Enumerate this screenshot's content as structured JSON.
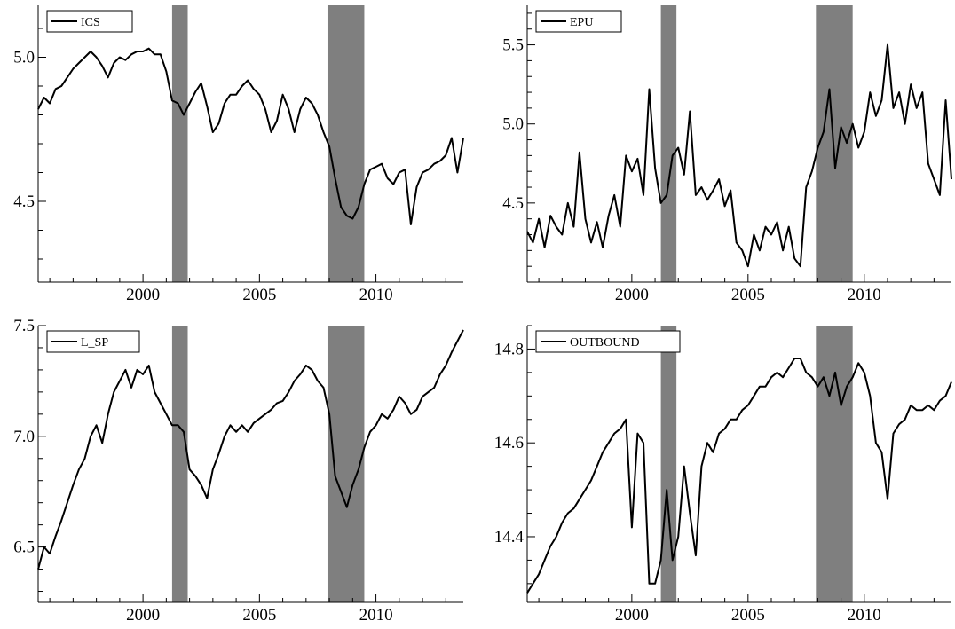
{
  "chart_data": [
    {
      "type": "line",
      "title": "",
      "legend": "ICS",
      "legend_position": "top-left",
      "xlabel": "",
      "ylabel": "",
      "xlim": [
        1995.5,
        2013.75
      ],
      "ylim": [
        4.22,
        5.18
      ],
      "xticks": [
        2000,
        2005,
        2010
      ],
      "xtick_labels": [
        "2000",
        "2005",
        "2010"
      ],
      "yticks": [
        4.5,
        5.0
      ],
      "ytick_labels": [
        "4.5",
        "5.0"
      ],
      "grid": false,
      "series": [
        {
          "name": "ICS",
          "color": "#000000",
          "x": [
            1995.5,
            1995.75,
            1996.0,
            1996.25,
            1996.5,
            1996.75,
            1997.0,
            1997.25,
            1997.5,
            1997.75,
            1998.0,
            1998.25,
            1998.5,
            1998.75,
            1999.0,
            1999.25,
            1999.5,
            1999.75,
            2000.0,
            2000.25,
            2000.5,
            2000.75,
            2001.0,
            2001.25,
            2001.5,
            2001.75,
            2002.0,
            2002.25,
            2002.5,
            2002.75,
            2003.0,
            2003.25,
            2003.5,
            2003.75,
            2004.0,
            2004.25,
            2004.5,
            2004.75,
            2005.0,
            2005.25,
            2005.5,
            2005.75,
            2006.0,
            2006.25,
            2006.5,
            2006.75,
            2007.0,
            2007.25,
            2007.5,
            2007.75,
            2008.0,
            2008.25,
            2008.5,
            2008.75,
            2009.0,
            2009.25,
            2009.5,
            2009.75,
            2010.0,
            2010.25,
            2010.5,
            2010.75,
            2011.0,
            2011.25,
            2011.5,
            2011.75,
            2012.0,
            2012.25,
            2012.5,
            2012.75,
            2013.0,
            2013.25,
            2013.5,
            2013.75
          ],
          "y": [
            4.82,
            4.86,
            4.84,
            4.89,
            4.9,
            4.93,
            4.96,
            4.98,
            5.0,
            5.02,
            5.0,
            4.97,
            4.93,
            4.98,
            5.0,
            4.99,
            5.01,
            5.02,
            5.02,
            5.03,
            5.01,
            5.01,
            4.95,
            4.85,
            4.84,
            4.8,
            4.84,
            4.88,
            4.91,
            4.83,
            4.74,
            4.77,
            4.84,
            4.87,
            4.87,
            4.9,
            4.92,
            4.89,
            4.87,
            4.82,
            4.74,
            4.78,
            4.87,
            4.82,
            4.74,
            4.82,
            4.86,
            4.84,
            4.8,
            4.74,
            4.69,
            4.58,
            4.48,
            4.45,
            4.44,
            4.48,
            4.56,
            4.61,
            4.62,
            4.63,
            4.58,
            4.56,
            4.6,
            4.61,
            4.42,
            4.55,
            4.6,
            4.61,
            4.63,
            4.64,
            4.66,
            4.72,
            4.6,
            4.72
          ]
        }
      ],
      "shaded_periods": [
        [
          2001.25,
          2001.92
        ],
        [
          2007.92,
          2009.5
        ]
      ]
    },
    {
      "type": "line",
      "title": "",
      "legend": "EPU",
      "legend_position": "top-left",
      "xlabel": "",
      "ylabel": "",
      "xlim": [
        1995.5,
        2013.75
      ],
      "ylim": [
        4.0,
        5.75
      ],
      "xticks": [
        2000,
        2005,
        2010
      ],
      "xtick_labels": [
        "2000",
        "2005",
        "2010"
      ],
      "yticks": [
        4.5,
        5.0,
        5.5
      ],
      "ytick_labels": [
        "4.5",
        "5.0",
        "5.5"
      ],
      "grid": false,
      "series": [
        {
          "name": "EPU",
          "color": "#000000",
          "x": [
            1995.5,
            1995.75,
            1996.0,
            1996.25,
            1996.5,
            1996.75,
            1997.0,
            1997.25,
            1997.5,
            1997.75,
            1998.0,
            1998.25,
            1998.5,
            1998.75,
            1999.0,
            1999.25,
            1999.5,
            1999.75,
            2000.0,
            2000.25,
            2000.5,
            2000.75,
            2001.0,
            2001.25,
            2001.5,
            2001.75,
            2002.0,
            2002.25,
            2002.5,
            2002.75,
            2003.0,
            2003.25,
            2003.5,
            2003.75,
            2004.0,
            2004.25,
            2004.5,
            2004.75,
            2005.0,
            2005.25,
            2005.5,
            2005.75,
            2006.0,
            2006.25,
            2006.5,
            2006.75,
            2007.0,
            2007.25,
            2007.5,
            2007.75,
            2008.0,
            2008.25,
            2008.5,
            2008.75,
            2009.0,
            2009.25,
            2009.5,
            2009.75,
            2010.0,
            2010.25,
            2010.5,
            2010.75,
            2011.0,
            2011.25,
            2011.5,
            2011.75,
            2012.0,
            2012.25,
            2012.5,
            2012.75,
            2013.0,
            2013.25,
            2013.5,
            2013.75
          ],
          "y": [
            4.32,
            4.25,
            4.4,
            4.22,
            4.42,
            4.35,
            4.3,
            4.5,
            4.35,
            4.82,
            4.4,
            4.25,
            4.38,
            4.22,
            4.42,
            4.55,
            4.35,
            4.8,
            4.7,
            4.78,
            4.55,
            5.22,
            4.72,
            4.5,
            4.55,
            4.8,
            4.85,
            4.68,
            5.08,
            4.55,
            4.6,
            4.52,
            4.58,
            4.65,
            4.48,
            4.58,
            4.25,
            4.2,
            4.1,
            4.3,
            4.2,
            4.35,
            4.3,
            4.38,
            4.2,
            4.35,
            4.15,
            4.1,
            4.6,
            4.7,
            4.85,
            4.95,
            5.22,
            4.72,
            4.98,
            4.88,
            5.0,
            4.85,
            4.95,
            5.2,
            5.05,
            5.15,
            5.5,
            5.1,
            5.2,
            5.0,
            5.25,
            5.1,
            5.2,
            4.75,
            4.65,
            4.55,
            5.15,
            4.65
          ]
        }
      ],
      "shaded_periods": [
        [
          2001.25,
          2001.92
        ],
        [
          2007.92,
          2009.5
        ]
      ]
    },
    {
      "type": "line",
      "title": "",
      "legend": "L_SP",
      "legend_position": "top-left",
      "xlabel": "",
      "ylabel": "",
      "xlim": [
        1995.5,
        2013.75
      ],
      "ylim": [
        6.25,
        7.5
      ],
      "xticks": [
        2000,
        2005,
        2010
      ],
      "xtick_labels": [
        "2000",
        "2005",
        "2010"
      ],
      "yticks": [
        6.5,
        7.0,
        7.5
      ],
      "ytick_labels": [
        "6.5",
        "7.0",
        "7.5"
      ],
      "grid": false,
      "series": [
        {
          "name": "L_SP",
          "color": "#000000",
          "x": [
            1995.5,
            1995.75,
            1996.0,
            1996.25,
            1996.5,
            1996.75,
            1997.0,
            1997.25,
            1997.5,
            1997.75,
            1998.0,
            1998.25,
            1998.5,
            1998.75,
            1999.0,
            1999.25,
            1999.5,
            1999.75,
            2000.0,
            2000.25,
            2000.5,
            2000.75,
            2001.0,
            2001.25,
            2001.5,
            2001.75,
            2002.0,
            2002.25,
            2002.5,
            2002.75,
            2003.0,
            2003.25,
            2003.5,
            2003.75,
            2004.0,
            2004.25,
            2004.5,
            2004.75,
            2005.0,
            2005.25,
            2005.5,
            2005.75,
            2006.0,
            2006.25,
            2006.5,
            2006.75,
            2007.0,
            2007.25,
            2007.5,
            2007.75,
            2008.0,
            2008.25,
            2008.5,
            2008.75,
            2009.0,
            2009.25,
            2009.5,
            2009.75,
            2010.0,
            2010.25,
            2010.5,
            2010.75,
            2011.0,
            2011.25,
            2011.5,
            2011.75,
            2012.0,
            2012.25,
            2012.5,
            2012.75,
            2013.0,
            2013.25,
            2013.5,
            2013.75
          ],
          "y": [
            6.4,
            6.5,
            6.47,
            6.55,
            6.62,
            6.7,
            6.78,
            6.85,
            6.9,
            7.0,
            7.05,
            6.97,
            7.1,
            7.2,
            7.25,
            7.3,
            7.22,
            7.3,
            7.28,
            7.32,
            7.2,
            7.15,
            7.1,
            7.05,
            7.05,
            7.02,
            6.85,
            6.82,
            6.78,
            6.72,
            6.85,
            6.92,
            7.0,
            7.05,
            7.02,
            7.05,
            7.02,
            7.06,
            7.08,
            7.1,
            7.12,
            7.15,
            7.16,
            7.2,
            7.25,
            7.28,
            7.32,
            7.3,
            7.25,
            7.22,
            7.1,
            6.82,
            6.75,
            6.68,
            6.78,
            6.85,
            6.95,
            7.02,
            7.05,
            7.1,
            7.08,
            7.12,
            7.18,
            7.15,
            7.1,
            7.12,
            7.18,
            7.2,
            7.22,
            7.28,
            7.32,
            7.38,
            7.43,
            7.48
          ]
        }
      ],
      "shaded_periods": [
        [
          2001.25,
          2001.92
        ],
        [
          2007.92,
          2009.5
        ]
      ]
    },
    {
      "type": "line",
      "title": "",
      "legend": "OUTBOUND",
      "legend_position": "top-left",
      "xlabel": "",
      "ylabel": "",
      "xlim": [
        1995.5,
        2013.75
      ],
      "ylim": [
        14.26,
        14.85
      ],
      "xticks": [
        2000,
        2005,
        2010
      ],
      "xtick_labels": [
        "2000",
        "2005",
        "2010"
      ],
      "yticks": [
        14.4,
        14.6,
        14.8
      ],
      "ytick_labels": [
        "14.4",
        "14.6",
        "14.8"
      ],
      "grid": false,
      "series": [
        {
          "name": "OUTBOUND",
          "color": "#000000",
          "x": [
            1995.5,
            1995.75,
            1996.0,
            1996.25,
            1996.5,
            1996.75,
            1997.0,
            1997.25,
            1997.5,
            1997.75,
            1998.0,
            1998.25,
            1998.5,
            1998.75,
            1999.0,
            1999.25,
            1999.5,
            1999.75,
            2000.0,
            2000.25,
            2000.5,
            2000.75,
            2001.0,
            2001.25,
            2001.5,
            2001.75,
            2002.0,
            2002.25,
            2002.5,
            2002.75,
            2003.0,
            2003.25,
            2003.5,
            2003.75,
            2004.0,
            2004.25,
            2004.5,
            2004.75,
            2005.0,
            2005.25,
            2005.5,
            2005.75,
            2006.0,
            2006.25,
            2006.5,
            2006.75,
            2007.0,
            2007.25,
            2007.5,
            2007.75,
            2008.0,
            2008.25,
            2008.5,
            2008.75,
            2009.0,
            2009.25,
            2009.5,
            2009.75,
            2010.0,
            2010.25,
            2010.5,
            2010.75,
            2011.0,
            2011.25,
            2011.5,
            2011.75,
            2012.0,
            2012.25,
            2012.5,
            2012.75,
            2013.0,
            2013.25,
            2013.5,
            2013.75
          ],
          "y": [
            14.28,
            14.3,
            14.32,
            14.35,
            14.38,
            14.4,
            14.43,
            14.45,
            14.46,
            14.48,
            14.5,
            14.52,
            14.55,
            14.58,
            14.6,
            14.62,
            14.63,
            14.65,
            14.42,
            14.62,
            14.6,
            14.3,
            14.3,
            14.35,
            14.5,
            14.35,
            14.4,
            14.55,
            14.45,
            14.36,
            14.55,
            14.6,
            14.58,
            14.62,
            14.63,
            14.65,
            14.65,
            14.67,
            14.68,
            14.7,
            14.72,
            14.72,
            14.74,
            14.75,
            14.74,
            14.76,
            14.78,
            14.78,
            14.75,
            14.74,
            14.72,
            14.74,
            14.7,
            14.75,
            14.68,
            14.72,
            14.74,
            14.77,
            14.75,
            14.7,
            14.6,
            14.58,
            14.48,
            14.62,
            14.64,
            14.65,
            14.68,
            14.67,
            14.67,
            14.68,
            14.67,
            14.69,
            14.7,
            14.73
          ]
        }
      ],
      "shaded_periods": [
        [
          2001.25,
          2001.92
        ],
        [
          2007.92,
          2009.5
        ]
      ]
    }
  ]
}
